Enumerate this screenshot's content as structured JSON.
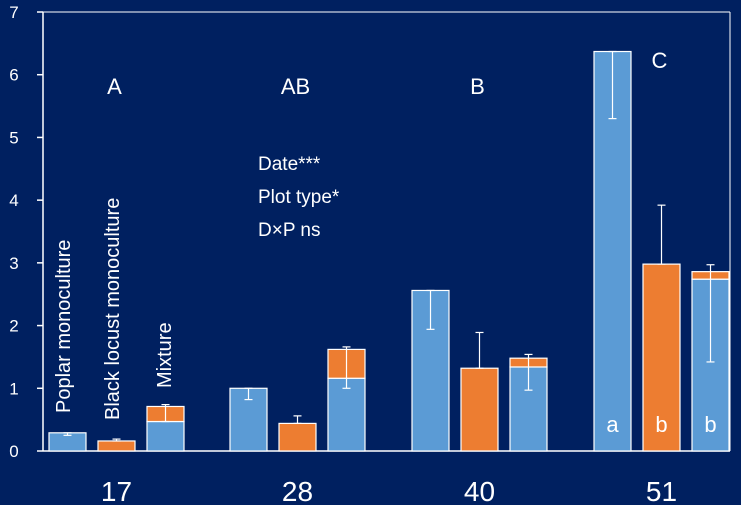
{
  "chart_data": {
    "type": "bar",
    "stacked": true,
    "categories": [
      "17",
      "28",
      "40",
      "51"
    ],
    "ylim": [
      0,
      7
    ],
    "yticks": [
      0,
      1,
      2,
      3,
      4,
      5,
      6,
      7
    ],
    "colors": {
      "background": "#002060",
      "poplar": "#5b9bd5",
      "black_locust": "#ed7d31",
      "axis": "#ffffff"
    },
    "groups": [
      {
        "category": "17",
        "bars": [
          {
            "poplar": 0.29,
            "black_locust": 0,
            "err_lo": 0.25,
            "err_hi": 0.29
          },
          {
            "poplar": 0,
            "black_locust": 0.16,
            "err_lo": 0.16,
            "err_hi": 0.19
          },
          {
            "poplar": 0.47,
            "black_locust": 0.24,
            "err_lo": 0.47,
            "err_hi": 0.74
          }
        ]
      },
      {
        "category": "28",
        "bars": [
          {
            "poplar": 1.0,
            "black_locust": 0,
            "err_lo": 0.82,
            "err_hi": 1.0
          },
          {
            "poplar": 0,
            "black_locust": 0.44,
            "err_lo": 0.44,
            "err_hi": 0.56
          },
          {
            "poplar": 1.16,
            "black_locust": 0.46,
            "err_lo": 1.0,
            "err_hi": 1.66
          }
        ]
      },
      {
        "category": "40",
        "bars": [
          {
            "poplar": 2.56,
            "black_locust": 0,
            "err_lo": 1.94,
            "err_hi": 2.56
          },
          {
            "poplar": 0,
            "black_locust": 1.32,
            "err_lo": 1.32,
            "err_hi": 1.89
          },
          {
            "poplar": 1.34,
            "black_locust": 0.14,
            "err_lo": 0.97,
            "err_hi": 1.54
          }
        ]
      },
      {
        "category": "51",
        "bars": [
          {
            "poplar": 6.37,
            "black_locust": 0,
            "err_lo": 5.3,
            "err_hi": 6.37
          },
          {
            "poplar": 0,
            "black_locust": 2.98,
            "err_lo": 2.98,
            "err_hi": 3.92
          },
          {
            "poplar": 2.74,
            "black_locust": 0.12,
            "err_lo": 1.42,
            "err_hi": 2.97
          }
        ]
      }
    ],
    "bar_labels": [
      "Poplar monoculture",
      "Black locust monoculture",
      "Mixture"
    ],
    "group_letters": [
      {
        "category": "17",
        "text": "A"
      },
      {
        "category": "28",
        "text": "AB"
      },
      {
        "category": "40",
        "text": "B"
      },
      {
        "category": "51",
        "text": "C"
      }
    ],
    "bar_letters": [
      {
        "category": "51",
        "bar": 0,
        "text": "a"
      },
      {
        "category": "51",
        "bar": 1,
        "text": "b"
      },
      {
        "category": "51",
        "bar": 2,
        "text": "b"
      }
    ],
    "annotations": [
      "Date***",
      "Plot type*",
      "D×P ns"
    ]
  }
}
